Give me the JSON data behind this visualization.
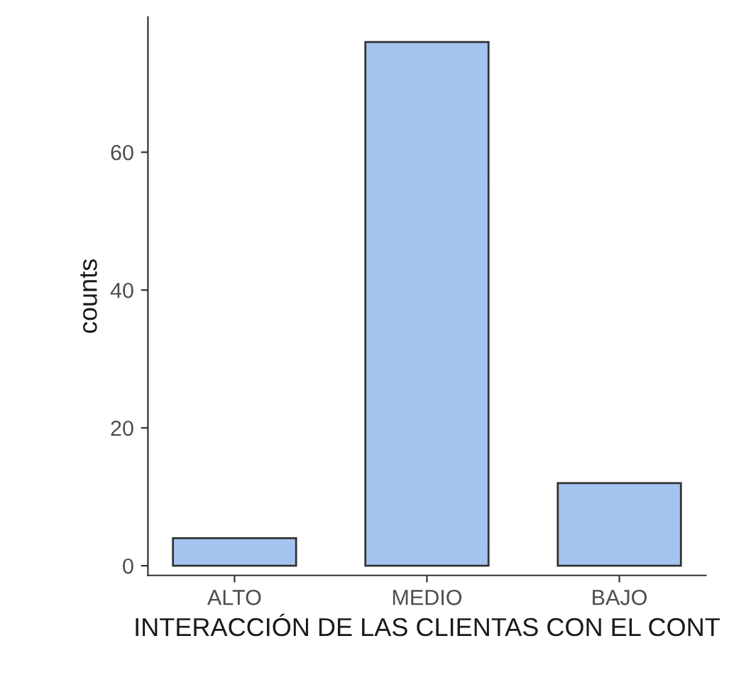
{
  "chart_data": {
    "type": "bar",
    "xlabel": "INTERACCIÓN DE LAS CLIENTAS CON EL CONT",
    "ylabel": "counts",
    "categories": [
      "ALTO",
      "MEDIO",
      "BAJO"
    ],
    "values": [
      4,
      76,
      12
    ],
    "color": "#a4c4f0",
    "ylim": [
      -1.4,
      79.6
    ],
    "yticks": [
      0,
      20,
      40,
      60
    ],
    "grid": false
  }
}
